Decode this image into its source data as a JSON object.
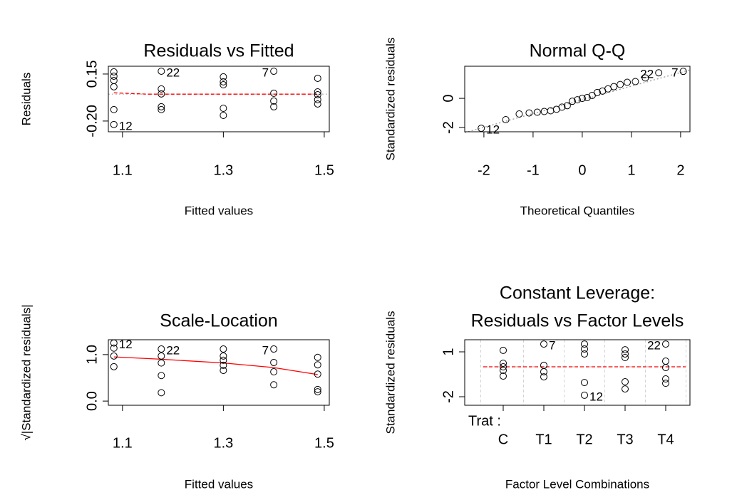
{
  "chart_data": [
    {
      "type": "scatter",
      "title": "Residuals vs Fitted",
      "xlabel": "Fitted values",
      "ylabel": "Residuals",
      "xlim": [
        1.072,
        1.51
      ],
      "ylim": [
        -0.28,
        0.208
      ],
      "xticks": [
        1.1,
        1.3,
        1.5
      ],
      "yticks": [
        {
          "value": -0.2,
          "label": "-0.20"
        },
        0.15
      ],
      "color": "#000000",
      "x": [
        1.083,
        1.083,
        1.083,
        1.083,
        1.083,
        1.083,
        1.177,
        1.177,
        1.177,
        1.177,
        1.177,
        1.3,
        1.3,
        1.3,
        1.3,
        1.3,
        1.4,
        1.4,
        1.4,
        1.4,
        1.487,
        1.487,
        1.487,
        1.487,
        1.487
      ],
      "values": [
        0.166,
        0.134,
        0.102,
        0.055,
        -0.115,
        -0.226,
        0.171,
        0.039,
        0.002,
        -0.094,
        -0.115,
        0.129,
        0.092,
        0.07,
        -0.105,
        -0.158,
        0.171,
        0.007,
        -0.051,
        -0.094,
        0.118,
        0.017,
        -0.004,
        -0.041,
        -0.073
      ],
      "lines": [
        {
          "color": "#bebebe",
          "style": "dotted",
          "x": [
            1.072,
            1.51
          ],
          "values": [
            0,
            0
          ]
        },
        {
          "color": "#ff0000",
          "style": "dashed",
          "x": [
            1.083,
            1.15,
            1.3,
            1.487
          ],
          "values": [
            0.01,
            0,
            0,
            0
          ]
        }
      ],
      "annotations": [
        {
          "text": "12",
          "x": 1.083,
          "y": -0.226
        },
        {
          "text": "22",
          "x": 1.177,
          "y": 0.171
        },
        {
          "text": "7",
          "x": 1.4,
          "y": 0.171
        }
      ]
    },
    {
      "type": "scatter",
      "title": "Normal Q-Q",
      "xlabel": "Theoretical Quantiles",
      "ylabel": "Standardized residuals",
      "xlim": [
        -2.39,
        2.19
      ],
      "ylim": [
        -2.29,
        2.2
      ],
      "xticks": [
        -2,
        -1,
        0,
        1,
        2
      ],
      "yticks": [
        -2,
        0
      ],
      "color": "#000000",
      "x": [
        -2.054,
        -1.555,
        -1.282,
        -1.08,
        -0.915,
        -0.772,
        -0.643,
        -0.524,
        -0.412,
        -0.305,
        -0.202,
        -0.1,
        0,
        0.1,
        0.202,
        0.305,
        0.412,
        0.524,
        0.643,
        0.772,
        0.915,
        1.08,
        1.282,
        1.555,
        2.054
      ],
      "values": [
        -2.05,
        -1.46,
        -1.07,
        -1.0,
        -0.95,
        -0.9,
        -0.85,
        -0.75,
        -0.6,
        -0.5,
        -0.2,
        -0.1,
        0.0,
        0.05,
        0.2,
        0.4,
        0.5,
        0.65,
        0.8,
        0.95,
        1.1,
        1.15,
        1.4,
        1.75,
        1.85
      ],
      "lines": [
        {
          "color": "#999999",
          "style": "dotted",
          "x": [
            -2.39,
            2.19
          ],
          "values": [
            -2.35,
            1.95
          ]
        }
      ],
      "annotations": [
        {
          "text": "12",
          "x": -2.054,
          "y": -2.05
        },
        {
          "text": "22",
          "x": 1.555,
          "y": 1.75
        },
        {
          "text": "7",
          "x": 2.054,
          "y": 1.85
        }
      ]
    },
    {
      "type": "scatter",
      "title": "Scale-Location",
      "xlabel": "Fitted values",
      "ylabel": "√|Standardized residuals|",
      "xlim": [
        1.072,
        1.51
      ],
      "ylim": [
        -0.09,
        1.32
      ],
      "xticks": [
        1.1,
        1.3,
        1.5
      ],
      "yticks": [
        {
          "value": 0,
          "label": "0.0"
        },
        {
          "value": 1,
          "label": "1.0"
        }
      ],
      "color": "#000000",
      "x": [
        1.083,
        1.083,
        1.083,
        1.083,
        1.177,
        1.177,
        1.177,
        1.177,
        1.177,
        1.3,
        1.3,
        1.3,
        1.3,
        1.3,
        1.4,
        1.4,
        1.4,
        1.4,
        1.487,
        1.487,
        1.487,
        1.487,
        1.487
      ],
      "values": [
        1.25,
        1.14,
        0.97,
        0.74,
        1.12,
        0.97,
        0.82,
        0.55,
        0.18,
        1.12,
        0.97,
        0.88,
        0.77,
        0.66,
        1.12,
        0.83,
        0.63,
        0.35,
        0.94,
        0.78,
        0.58,
        0.25,
        0.2
      ],
      "lines": [
        {
          "color": "#ff0000",
          "style": "solid",
          "x": [
            1.083,
            1.177,
            1.3,
            1.4,
            1.487
          ],
          "values": [
            0.95,
            0.9,
            0.82,
            0.72,
            0.57
          ]
        }
      ],
      "annotations": [
        {
          "text": "12",
          "x": 1.083,
          "y": 1.25
        },
        {
          "text": "22",
          "x": 1.177,
          "y": 1.12
        },
        {
          "text": "7",
          "x": 1.4,
          "y": 1.12
        }
      ]
    },
    {
      "type": "factor",
      "title": [
        "Constant Leverage:",
        "Residuals vs Factor Levels"
      ],
      "xlabel": "Factor Level Combinations",
      "ylabel": "Standardized residuals",
      "factor_label": "Trat :",
      "categories": [
        "C",
        "T1",
        "T2",
        "T3",
        "T4"
      ],
      "ylim": [
        -2.57,
        1.81
      ],
      "yticks": [
        -2,
        1
      ],
      "color": "#000000",
      "values": [
        [
          1.1,
          0.24,
          0,
          -0.24,
          -0.62
        ],
        [
          1.52,
          0.1,
          -0.33,
          -0.67
        ],
        [
          1.52,
          1.19,
          0.86,
          -1.05,
          -1.9
        ],
        [
          1.14,
          0.86,
          0.62,
          -1.0,
          -1.48
        ],
        [
          1.52,
          0.38,
          -0.05,
          -0.81,
          -1.1
        ]
      ],
      "lines": [
        {
          "color": "#bebebe",
          "style": "dotted",
          "x": [
            "C",
            "T4"
          ],
          "values": [
            0,
            0
          ]
        },
        {
          "color": "#ff0000",
          "style": "dashed",
          "x": [
            "C",
            "T4"
          ],
          "values": [
            0,
            0
          ]
        }
      ],
      "annotations": [
        {
          "text": "7",
          "x": "T1",
          "y": 1.52
        },
        {
          "text": "12",
          "x": "T2",
          "y": -1.9
        },
        {
          "text": "22",
          "x": "T4",
          "y": 1.52
        }
      ]
    }
  ]
}
